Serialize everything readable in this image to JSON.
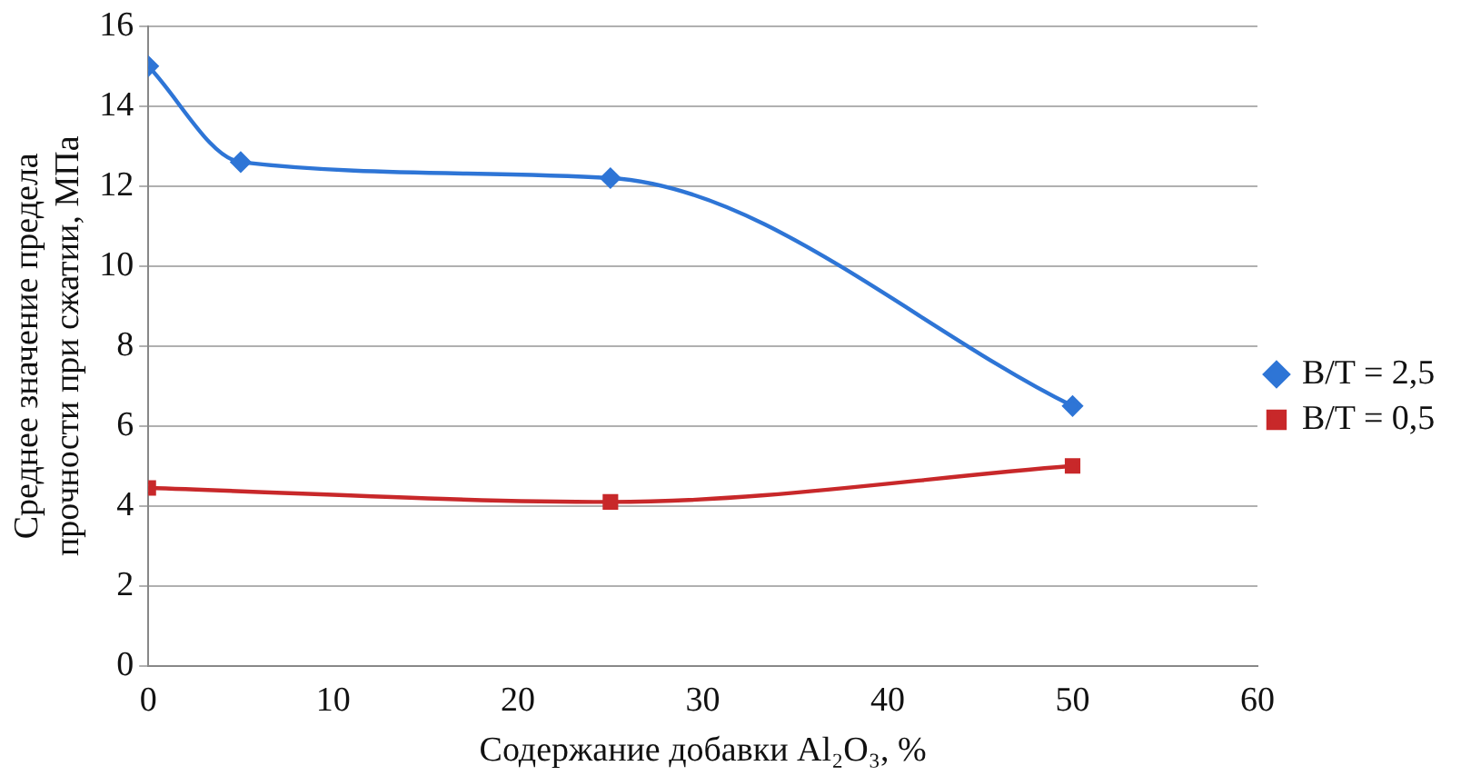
{
  "chart_data": {
    "type": "line",
    "xlabel": "Содержание добавки Al₂O₃, %",
    "ylabel": "Среднее значение предела прочности при сжатии, МПа",
    "xlim": [
      0,
      60
    ],
    "xticks": [
      0,
      10,
      20,
      30,
      40,
      50,
      60
    ],
    "ylim": [
      0,
      16
    ],
    "yticks": [
      0,
      2,
      4,
      6,
      8,
      10,
      12,
      14,
      16
    ],
    "grid": "y",
    "legend": "right",
    "series": [
      {
        "name": "B/T = 2,5",
        "color": "#2e75d6",
        "marker": "diamond",
        "x": [
          0,
          5,
          25,
          50
        ],
        "values": [
          15,
          12.6,
          12.2,
          6.5
        ]
      },
      {
        "name": "B/T = 0,5",
        "color": "#c8282a",
        "marker": "square",
        "x": [
          0,
          25,
          50
        ],
        "values": [
          4.45,
          4.1,
          5.0
        ]
      }
    ]
  }
}
